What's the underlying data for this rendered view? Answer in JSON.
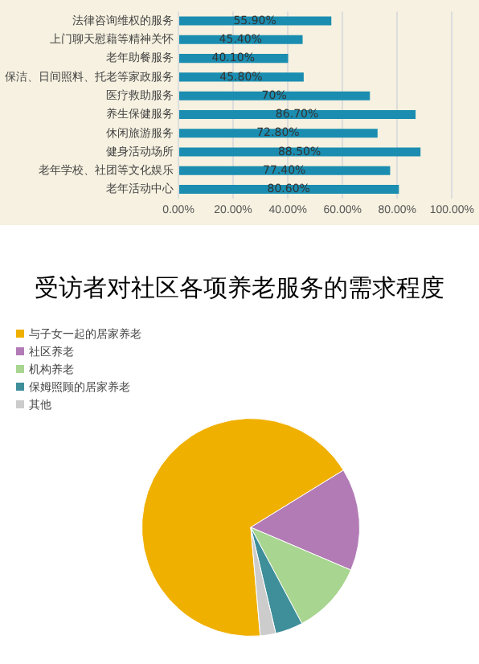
{
  "chart_data": [
    {
      "type": "bar",
      "orientation": "horizontal",
      "categories": [
        "法律咨询维权的服务",
        "上门聊天慰藉等精神关怀",
        "老年助餐服务",
        "保洁、日间照料、托老等家政服务",
        "医疗救助服务",
        "养生保健服务",
        "休闲旅游服务",
        "健身活动场所",
        "老年学校、社团等文化娱乐",
        "老年活动中心"
      ],
      "values": [
        55.9,
        45.4,
        40.1,
        45.8,
        70,
        86.7,
        72.8,
        88.5,
        77.4,
        80.6
      ],
      "value_labels": [
        "55.90%",
        "45.40%",
        "40.10%",
        "45.80%",
        "70%",
        "86.70%",
        "72.80%",
        "88.50%",
        "77.40%",
        "80.60%"
      ],
      "color": "#1a8db0",
      "xlim": [
        0,
        100
      ],
      "xticks": [
        {
          "value": 0,
          "label": "0.00%"
        },
        {
          "value": 20,
          "label": "20.00%"
        },
        {
          "value": 40,
          "label": "40.00%"
        },
        {
          "value": 60,
          "label": "60.00%"
        },
        {
          "value": 80,
          "label": "80.00%"
        },
        {
          "value": 100,
          "label": "100.00%"
        }
      ],
      "grid": "x",
      "legend": false
    },
    {
      "type": "pie",
      "title": "受访者对社区各项养老服务的需求程度",
      "categories": [
        "与子女一起的居家养老",
        "社区养老",
        "机构养老",
        "保姆照顾的居家养老",
        "其他"
      ],
      "values": [
        67.6,
        15.2,
        10.8,
        4.1,
        2.3
      ],
      "colors": [
        "#f0b000",
        "#b27bb5",
        "#a8d590",
        "#3f8f9a",
        "#cccccc"
      ],
      "legend": "top left"
    }
  ]
}
